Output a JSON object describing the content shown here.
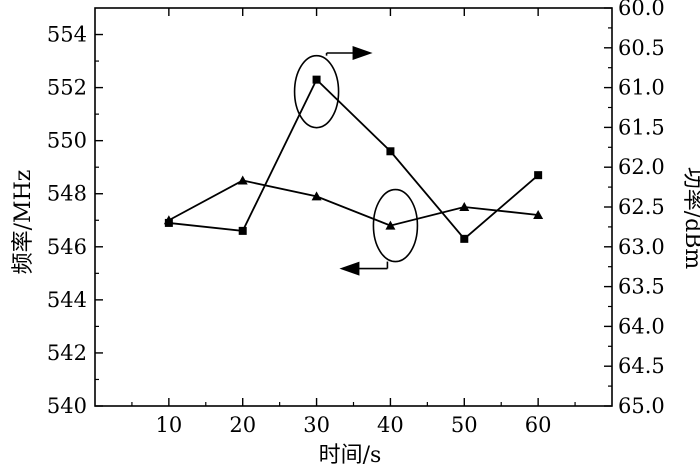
{
  "chart_data": {
    "type": "line",
    "xlabel": "时间/s",
    "ylabel_left": "频率/MHz",
    "ylabel_right": "功率/dBm",
    "x": [
      10,
      20,
      30,
      40,
      50,
      60
    ],
    "xlim": [
      0,
      70
    ],
    "xticks": [
      "10",
      "20",
      "30",
      "40",
      "50",
      "60"
    ],
    "ylim_left": [
      540,
      555
    ],
    "yticks_left": [
      "540",
      "542",
      "544",
      "546",
      "548",
      "550",
      "552",
      "554"
    ],
    "ylim_right": [
      60.0,
      65.0
    ],
    "yticks_right": [
      "60.0",
      "60.5",
      "61.0",
      "61.5",
      "62.0",
      "62.5",
      "63.0",
      "63.5",
      "64.0",
      "64.5",
      "65.0"
    ],
    "right_axis_inverted": true,
    "grid": false,
    "series": [
      {
        "axis": "left",
        "marker": "triangle",
        "values": [
          547.0,
          548.5,
          547.9,
          546.8,
          547.5,
          547.2
        ]
      },
      {
        "axis": "right",
        "marker": "square",
        "values": [
          62.7,
          62.8,
          60.9,
          61.8,
          62.9,
          62.1
        ]
      }
    ],
    "annotations": [
      {
        "type": "ellipse-with-arrow",
        "series": "right",
        "direction": "right"
      },
      {
        "type": "ellipse-with-arrow",
        "series": "left",
        "direction": "left"
      }
    ]
  }
}
